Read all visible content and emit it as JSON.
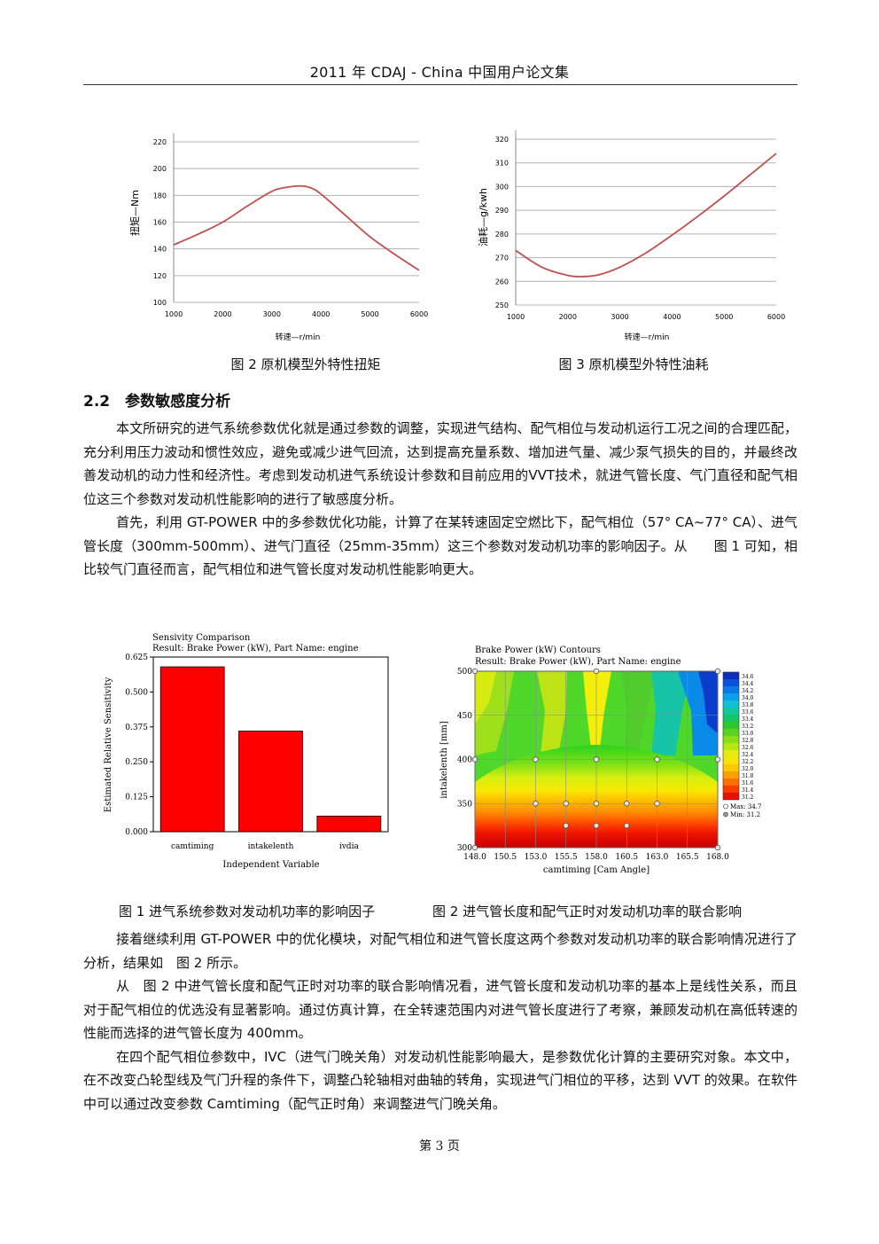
{
  "header": {
    "title": "2011 年 CDAJ - China 中国用户论文集"
  },
  "figures": {
    "fig2_caption": "图 2 原机模型外特性扭矩",
    "fig3_caption": "图 3 原机模型外特性油耗",
    "fig1b_caption": "图 1 进气系统参数对发动机功率的影响因子",
    "fig2b_caption": "图 2 进气管长度和配气正时对发动机功率的联合影响"
  },
  "section": {
    "heading": "2.2　参数敏感度分析"
  },
  "paragraphs": {
    "p1": "本文所研究的进气系统参数优化就是通过参数的调整，实现进气结构、配气相位与发动机运行工况之间的合理匹配，充分利用压力波动和惯性效应，避免或减少进气回流，达到提高充量系数、增加进气量、减少泵气损失的目的，并最终改善发动机的动力性和经济性。考虑到发动机进气系统设计参数和目前应用的VVT技术，就进气管长度、气门直径和配气相位这三个参数对发动机性能影响的进行了敏感度分析。",
    "p2": "首先，利用 GT-POWER 中的多参数优化功能，计算了在某转速固定空燃比下，配气相位（57° CA~77° CA）、进气管长度（300mm-500mm）、进气门直径（25mm-35mm）这三个参数对发动机功率的影响因子。从　　图 1 可知，相比较气门直径而言，配气相位和进气管长度对发动机性能影响更大。",
    "p3": "接着继续利用 GT-POWER 中的优化模块，对配气相位和进气管长度这两个参数对发动机功率的联合影响情况进行了分析，结果如　图 2 所示。",
    "p4": "从　图 2 中进气管长度和配气正时对功率的联合影响情况看，进气管长度和发动机功率的基本上是线性关系，而且对于配气相位的优选没有显著影响。通过仿真计算，在全转速范围内对进气管长度进行了考察，兼顾发动机在高低转速的性能而选择的进气管长度为 400mm。",
    "p5": "在四个配气相位参数中，IVC（进气门晚关角）对发动机性能影响最大，是参数优化计算的主要研究对象。本文中，在不改变凸轮型线及气门升程的条件下，调整凸轮轴相对曲轴的转角，实现进气门相位的平移，达到 VVT 的效果。在软件中可以通过改变参数 Camtiming（配气正时角）来调整进气门晚关角。"
  },
  "footer": {
    "page": "第 3 页"
  },
  "colors": {
    "curve": "#c0504d",
    "bar": "#ff0000",
    "grid": "#b3b3b3"
  },
  "chart_data": [
    {
      "type": "line",
      "xlabel": "转速—r/min",
      "ylabel": "扭矩—Nm",
      "xlim": [
        1000,
        6000
      ],
      "ylim": [
        100,
        220
      ],
      "xticks": [
        1000,
        2000,
        3000,
        4000,
        5000,
        6000
      ],
      "yticks": [
        100,
        120,
        140,
        160,
        180,
        200,
        220
      ],
      "x": [
        1000,
        1500,
        2000,
        2500,
        3000,
        3300,
        3600,
        3800,
        4000,
        4500,
        5000,
        5500,
        6000
      ],
      "y": [
        143,
        151,
        160,
        172,
        183,
        186,
        187,
        185.5,
        181,
        165,
        149,
        136,
        124
      ]
    },
    {
      "type": "line",
      "xlabel": "转速—r/min",
      "ylabel": "油耗—g/kwh",
      "xlim": [
        1000,
        6000
      ],
      "ylim": [
        250,
        320
      ],
      "xticks": [
        1000,
        2000,
        3000,
        4000,
        5000,
        6000
      ],
      "yticks": [
        250,
        260,
        270,
        280,
        290,
        300,
        310,
        320
      ],
      "x": [
        1000,
        1500,
        2000,
        2300,
        2600,
        3000,
        3500,
        4000,
        4500,
        5000,
        5500,
        6000
      ],
      "y": [
        273,
        266,
        262.5,
        262,
        262.8,
        266,
        272,
        279.5,
        287.5,
        296,
        305,
        314
      ]
    },
    {
      "type": "bar",
      "title": "Sensivity Comparison",
      "subtitle": "Result: Brake Power (kW), Part Name: engine",
      "xlabel": "Independent Variable",
      "ylabel": "Estimated Relative Sensitivity",
      "categories": [
        "camtiming",
        "intakelenth",
        "ivdia"
      ],
      "values": [
        0.59,
        0.36,
        0.056
      ],
      "ylim": [
        0,
        0.625
      ],
      "yticks": [
        "0.000",
        "0.125",
        "0.250",
        "0.375",
        "0.500",
        "0.625"
      ]
    },
    {
      "type": "heatmap",
      "title": "Brake Power (kW) Contours",
      "subtitle": "Result: Brake Power (kW), Part Name: engine",
      "xlabel": "camtiming [Cam Angle]",
      "ylabel": "intakelenth [mm]",
      "xticks": [
        "148.0",
        "150.5",
        "153.0",
        "155.5",
        "158.0",
        "160.5",
        "163.0",
        "165.5",
        "168.0"
      ],
      "yticks": [
        "300",
        "350",
        "400",
        "450",
        "500"
      ],
      "legend_values": [
        "34.6",
        "34.4",
        "34.2",
        "34.0",
        "33.8",
        "33.6",
        "33.4",
        "33.2",
        "33.0",
        "32.8",
        "32.6",
        "32.4",
        "32.2",
        "32.0",
        "31.8",
        "31.6",
        "31.4",
        "31.2"
      ],
      "legend_labels": [
        "Max: 34.7",
        "Min: 31.2"
      ]
    }
  ]
}
